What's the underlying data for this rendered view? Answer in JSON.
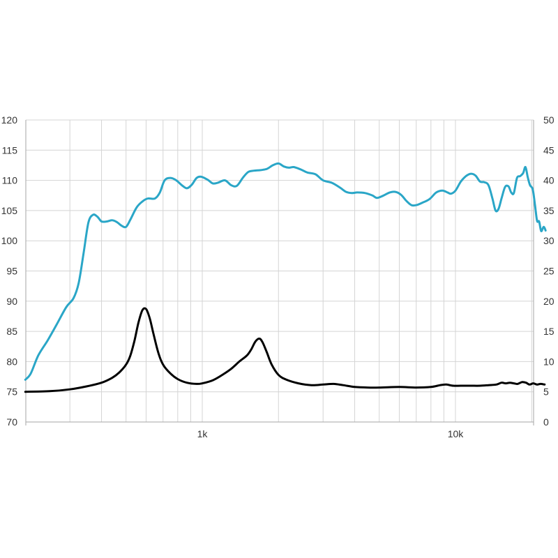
{
  "chart_data": {
    "type": "line",
    "x_scale": "log",
    "xlim": [
      200,
      20000
    ],
    "y_left_lim": [
      70,
      120
    ],
    "y_right_lim": [
      0,
      50
    ],
    "y_left_ticks": [
      "70",
      "75",
      "80",
      "85",
      "90",
      "95",
      "100",
      "105",
      "110",
      "115",
      "120"
    ],
    "y_right_ticks": [
      "0",
      "5",
      "10",
      "15",
      "20",
      "25",
      "30",
      "35",
      "40",
      "45",
      "50"
    ],
    "x_ticks": [
      {
        "value": 1000,
        "label": "1k"
      },
      {
        "value": 10000,
        "label": "10k"
      }
    ],
    "grid": true,
    "series": [
      {
        "axis": "left",
        "color": "#2aa6c7",
        "points": [
          [
            200,
            77
          ],
          [
            210,
            78
          ],
          [
            225,
            81
          ],
          [
            245,
            83.5
          ],
          [
            265,
            86
          ],
          [
            290,
            89
          ],
          [
            310,
            90.5
          ],
          [
            325,
            93
          ],
          [
            340,
            98
          ],
          [
            355,
            103
          ],
          [
            370,
            104.3
          ],
          [
            385,
            104
          ],
          [
            400,
            103.2
          ],
          [
            420,
            103.2
          ],
          [
            440,
            103.4
          ],
          [
            460,
            103.1
          ],
          [
            480,
            102.5
          ],
          [
            500,
            102.3
          ],
          [
            520,
            103.5
          ],
          [
            550,
            105.5
          ],
          [
            580,
            106.5
          ],
          [
            610,
            107
          ],
          [
            650,
            107
          ],
          [
            680,
            108
          ],
          [
            710,
            110
          ],
          [
            750,
            110.4
          ],
          [
            790,
            110
          ],
          [
            830,
            109.2
          ],
          [
            870,
            108.7
          ],
          [
            910,
            109.3
          ],
          [
            950,
            110.4
          ],
          [
            990,
            110.6
          ],
          [
            1050,
            110.1
          ],
          [
            1100,
            109.5
          ],
          [
            1150,
            109.6
          ],
          [
            1230,
            110
          ],
          [
            1300,
            109.2
          ],
          [
            1370,
            109.1
          ],
          [
            1450,
            110.5
          ],
          [
            1520,
            111.4
          ],
          [
            1600,
            111.6
          ],
          [
            1700,
            111.7
          ],
          [
            1800,
            111.9
          ],
          [
            1900,
            112.5
          ],
          [
            2000,
            112.8
          ],
          [
            2100,
            112.3
          ],
          [
            2200,
            112.1
          ],
          [
            2300,
            112.2
          ],
          [
            2450,
            111.8
          ],
          [
            2600,
            111.3
          ],
          [
            2800,
            111
          ],
          [
            3000,
            110
          ],
          [
            3250,
            109.6
          ],
          [
            3500,
            108.8
          ],
          [
            3700,
            108.1
          ],
          [
            3900,
            107.9
          ],
          [
            4100,
            108
          ],
          [
            4400,
            107.9
          ],
          [
            4700,
            107.5
          ],
          [
            4900,
            107.1
          ],
          [
            5200,
            107.5
          ],
          [
            5500,
            108
          ],
          [
            5800,
            108.1
          ],
          [
            6100,
            107.6
          ],
          [
            6400,
            106.6
          ],
          [
            6700,
            105.9
          ],
          [
            7000,
            105.9
          ],
          [
            7400,
            106.3
          ],
          [
            7900,
            106.9
          ],
          [
            8400,
            108
          ],
          [
            8900,
            108.3
          ],
          [
            9300,
            108
          ],
          [
            9600,
            107.8
          ],
          [
            10000,
            108.3
          ],
          [
            10500,
            109.8
          ],
          [
            11000,
            110.7
          ],
          [
            11500,
            111.1
          ],
          [
            12000,
            110.8
          ],
          [
            12500,
            109.8
          ],
          [
            13000,
            109.7
          ],
          [
            13500,
            109.2
          ],
          [
            14000,
            107
          ],
          [
            14400,
            105
          ],
          [
            14800,
            105.3
          ],
          [
            15200,
            107
          ],
          [
            15700,
            108.9
          ],
          [
            16200,
            109
          ],
          [
            16600,
            108
          ],
          [
            17000,
            107.9
          ],
          [
            17500,
            110.4
          ],
          [
            18000,
            110.7
          ],
          [
            18500,
            111.2
          ],
          [
            18900,
            112.2
          ],
          [
            19300,
            110.5
          ],
          [
            19700,
            109.2
          ],
          [
            20200,
            108.5
          ],
          [
            20600,
            106
          ],
          [
            21000,
            103.3
          ],
          [
            21400,
            103.2
          ],
          [
            21800,
            101.6
          ],
          [
            22300,
            102.3
          ],
          [
            22700,
            101.7
          ]
        ]
      },
      {
        "axis": "right",
        "color": "#000000",
        "points": [
          [
            200,
            5
          ],
          [
            250,
            5.1
          ],
          [
            300,
            5.4
          ],
          [
            350,
            5.9
          ],
          [
            400,
            6.5
          ],
          [
            440,
            7.3
          ],
          [
            470,
            8.2
          ],
          [
            500,
            9.5
          ],
          [
            520,
            11
          ],
          [
            540,
            13.5
          ],
          [
            560,
            16.5
          ],
          [
            580,
            18.5
          ],
          [
            600,
            18.7
          ],
          [
            620,
            17.2
          ],
          [
            640,
            14.8
          ],
          [
            670,
            11.5
          ],
          [
            700,
            9.5
          ],
          [
            750,
            8
          ],
          [
            800,
            7.1
          ],
          [
            870,
            6.5
          ],
          [
            950,
            6.3
          ],
          [
            1000,
            6.4
          ],
          [
            1100,
            6.9
          ],
          [
            1200,
            7.8
          ],
          [
            1300,
            8.8
          ],
          [
            1400,
            10
          ],
          [
            1500,
            11
          ],
          [
            1560,
            12
          ],
          [
            1620,
            13.3
          ],
          [
            1680,
            13.8
          ],
          [
            1730,
            13.2
          ],
          [
            1800,
            11.5
          ],
          [
            1880,
            9.5
          ],
          [
            2000,
            7.8
          ],
          [
            2150,
            7
          ],
          [
            2400,
            6.4
          ],
          [
            2700,
            6.1
          ],
          [
            3000,
            6.2
          ],
          [
            3300,
            6.3
          ],
          [
            3600,
            6.1
          ],
          [
            4000,
            5.8
          ],
          [
            4500,
            5.7
          ],
          [
            5000,
            5.7
          ],
          [
            6000,
            5.8
          ],
          [
            7000,
            5.7
          ],
          [
            8000,
            5.8
          ],
          [
            8700,
            6.1
          ],
          [
            9200,
            6.2
          ],
          [
            9800,
            6
          ],
          [
            10500,
            6
          ],
          [
            11500,
            6
          ],
          [
            12500,
            6
          ],
          [
            13500,
            6.1
          ],
          [
            14500,
            6.2
          ],
          [
            15200,
            6.5
          ],
          [
            15800,
            6.4
          ],
          [
            16400,
            6.5
          ],
          [
            17000,
            6.4
          ],
          [
            17600,
            6.3
          ],
          [
            18300,
            6.6
          ],
          [
            19000,
            6.5
          ],
          [
            19600,
            6.2
          ],
          [
            20300,
            6.4
          ],
          [
            21000,
            6.2
          ],
          [
            21700,
            6.3
          ],
          [
            22500,
            6.2
          ]
        ]
      }
    ]
  }
}
